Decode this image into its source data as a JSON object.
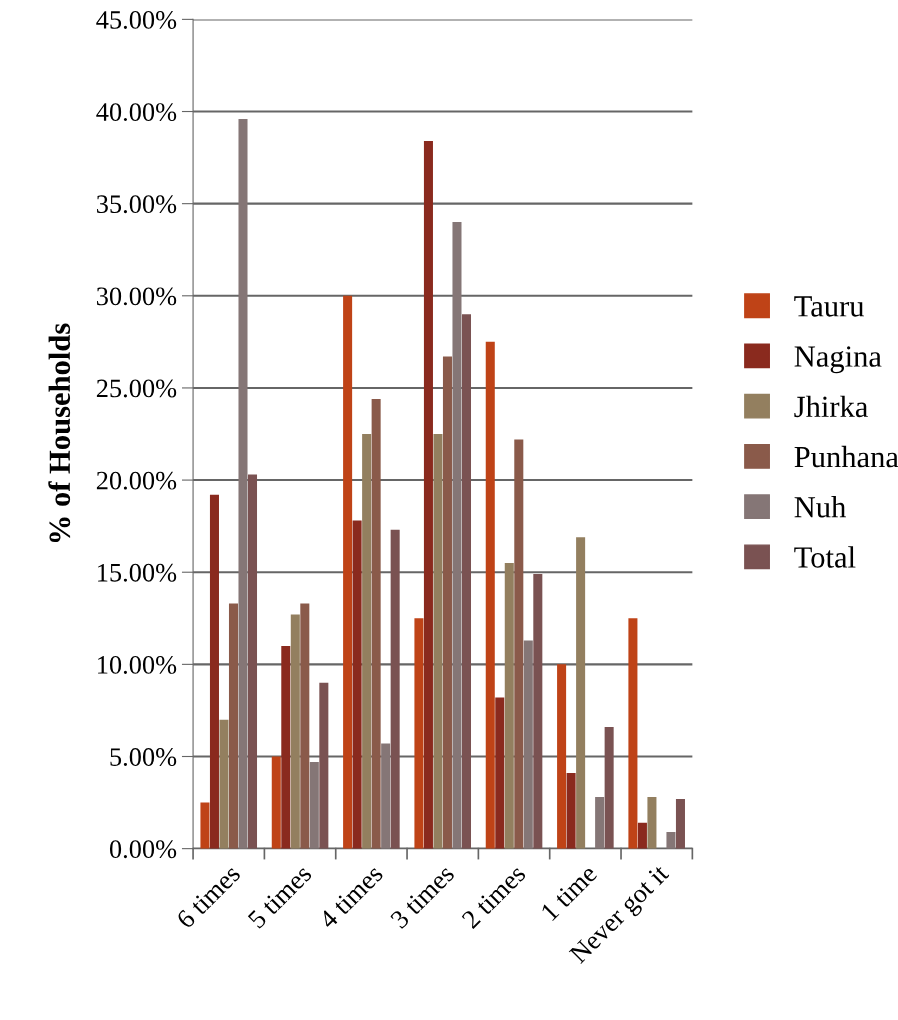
{
  "chart_data": {
    "type": "bar",
    "ylabel": "% of Households",
    "categories": [
      "6 times",
      "5 times",
      "4 times",
      "3 times",
      "2 times",
      "1 time",
      "Never got it"
    ],
    "series": [
      {
        "name": "Tauru",
        "color": "#bf4317",
        "values": [
          2.5,
          5.0,
          30.0,
          12.5,
          27.5,
          10.0,
          12.5
        ]
      },
      {
        "name": "Nagina",
        "color": "#8a2a1e",
        "values": [
          19.2,
          11.0,
          17.8,
          38.4,
          8.2,
          4.1,
          1.4
        ]
      },
      {
        "name": "Jhirka",
        "color": "#937f5f",
        "values": [
          7.0,
          12.7,
          22.5,
          22.5,
          15.5,
          16.9,
          2.8
        ]
      },
      {
        "name": "Punhana",
        "color": "#8a5a4a",
        "values": [
          13.3,
          13.3,
          24.4,
          26.7,
          22.2,
          0,
          0
        ]
      },
      {
        "name": "Nuh",
        "color": "#857676",
        "values": [
          39.6,
          4.7,
          5.7,
          34.0,
          11.3,
          2.8,
          0.9
        ]
      },
      {
        "name": "Total",
        "color": "#7a5252",
        "values": [
          20.3,
          9.0,
          17.3,
          29.0,
          14.9,
          6.6,
          2.7
        ]
      }
    ],
    "ylim": [
      0,
      45
    ],
    "yticks": [
      {
        "value": 0,
        "label": "0.00%"
      },
      {
        "value": 5,
        "label": "5.00%"
      },
      {
        "value": 10,
        "label": "10.00%"
      },
      {
        "value": 15,
        "label": "15.00%"
      },
      {
        "value": 20,
        "label": "20.00%"
      },
      {
        "value": 25,
        "label": "25.00%"
      },
      {
        "value": 30,
        "label": "30.00%"
      },
      {
        "value": 35,
        "label": "35.00%"
      },
      {
        "value": 40,
        "label": "40.00%"
      },
      {
        "value": 45,
        "label": "45.00%"
      }
    ],
    "grid": "y",
    "legend": "right"
  }
}
